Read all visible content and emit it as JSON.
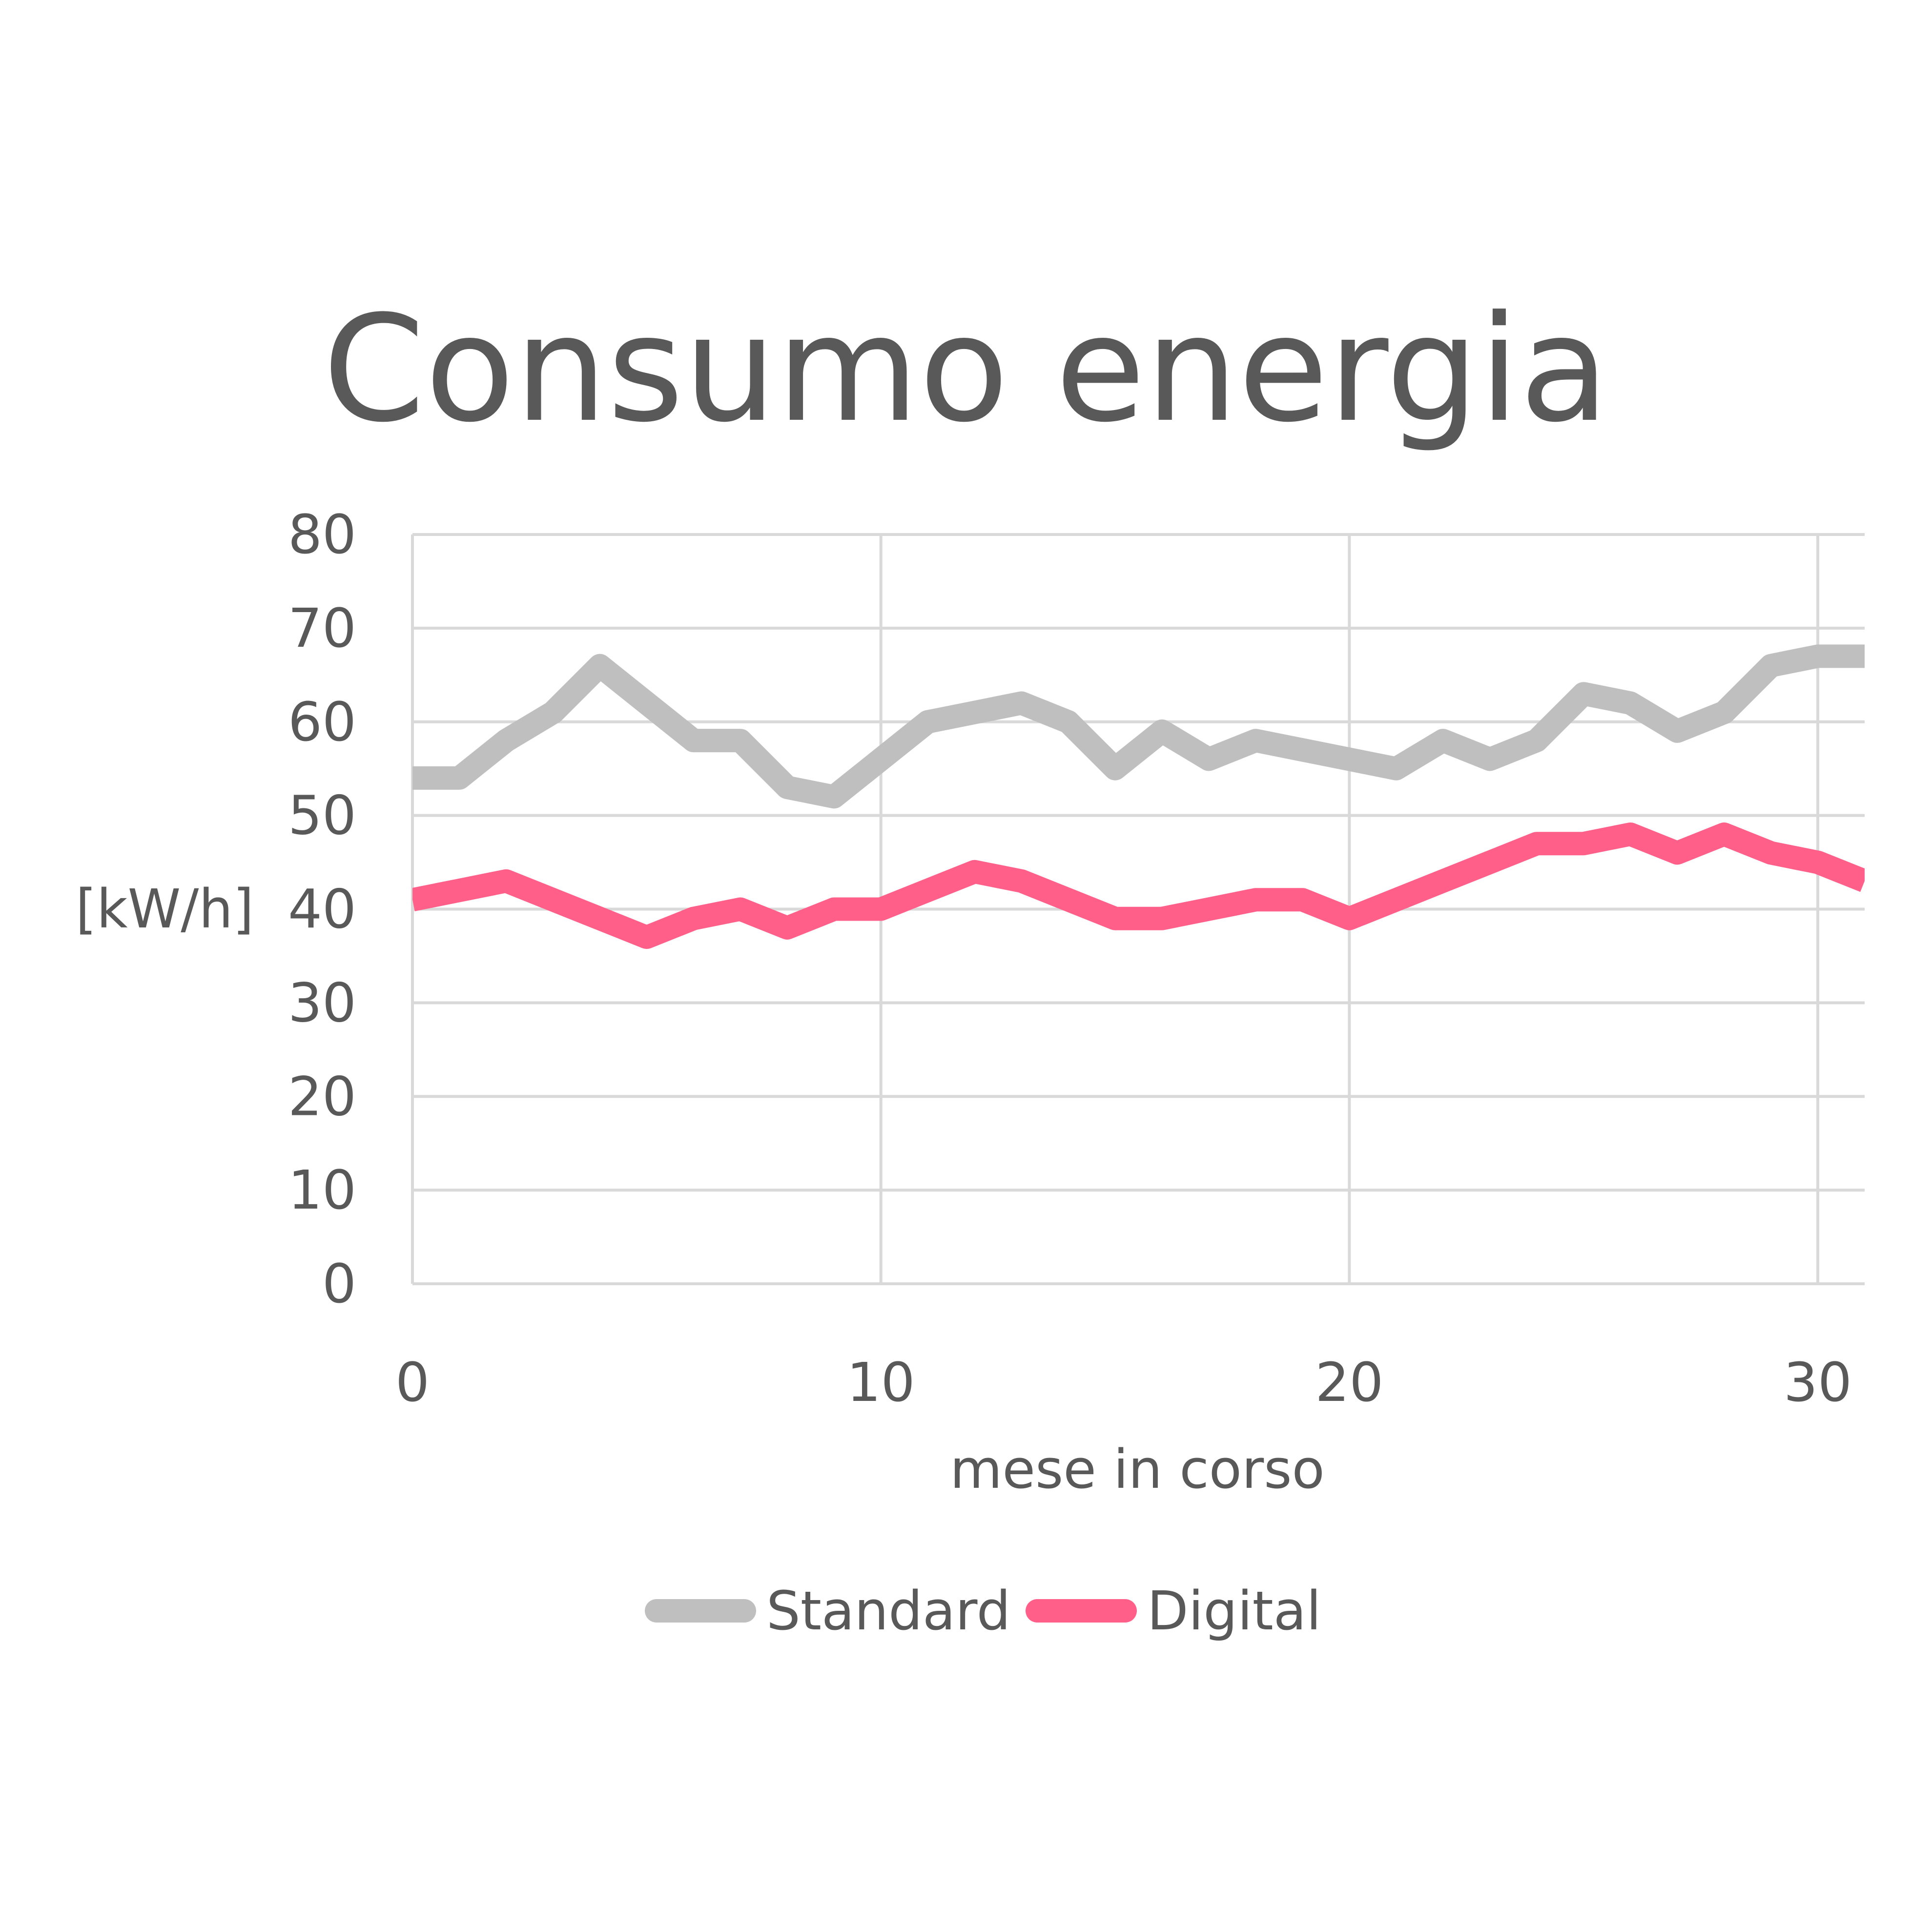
{
  "chart_data": {
    "type": "line",
    "title": "Consumo energia",
    "xlabel": "mese in corso",
    "ylabel": "[kW/h]",
    "xlim": [
      0,
      31
    ],
    "ylim": [
      0,
      80
    ],
    "x_ticks": [
      0,
      10,
      20,
      30
    ],
    "y_ticks": [
      0,
      10,
      20,
      30,
      40,
      50,
      60,
      70,
      80
    ],
    "grid": true,
    "legend": "bottom",
    "x": [
      0,
      1,
      2,
      3,
      4,
      5,
      6,
      7,
      8,
      9,
      10,
      11,
      12,
      13,
      14,
      15,
      16,
      17,
      18,
      19,
      20,
      21,
      22,
      23,
      24,
      25,
      26,
      27,
      28,
      29,
      30,
      31
    ],
    "series": [
      {
        "name": "Standard",
        "color": "#bfbfbf",
        "values": [
          54,
          54,
          58,
          61,
          66,
          62,
          58,
          58,
          53,
          52,
          56,
          60,
          61,
          62,
          60,
          55,
          59,
          56,
          58,
          57,
          56,
          55,
          58,
          56,
          58,
          63,
          62,
          59,
          61,
          66,
          67,
          67
        ]
      },
      {
        "name": "Digital",
        "color": "#ff5f89",
        "values": [
          41,
          42,
          43,
          41,
          39,
          37,
          39,
          40,
          38,
          40,
          40,
          42,
          44,
          43,
          41,
          39,
          39,
          40,
          41,
          41,
          39,
          41,
          43,
          45,
          47,
          47,
          48,
          46,
          48,
          46,
          45,
          43
        ]
      }
    ]
  }
}
